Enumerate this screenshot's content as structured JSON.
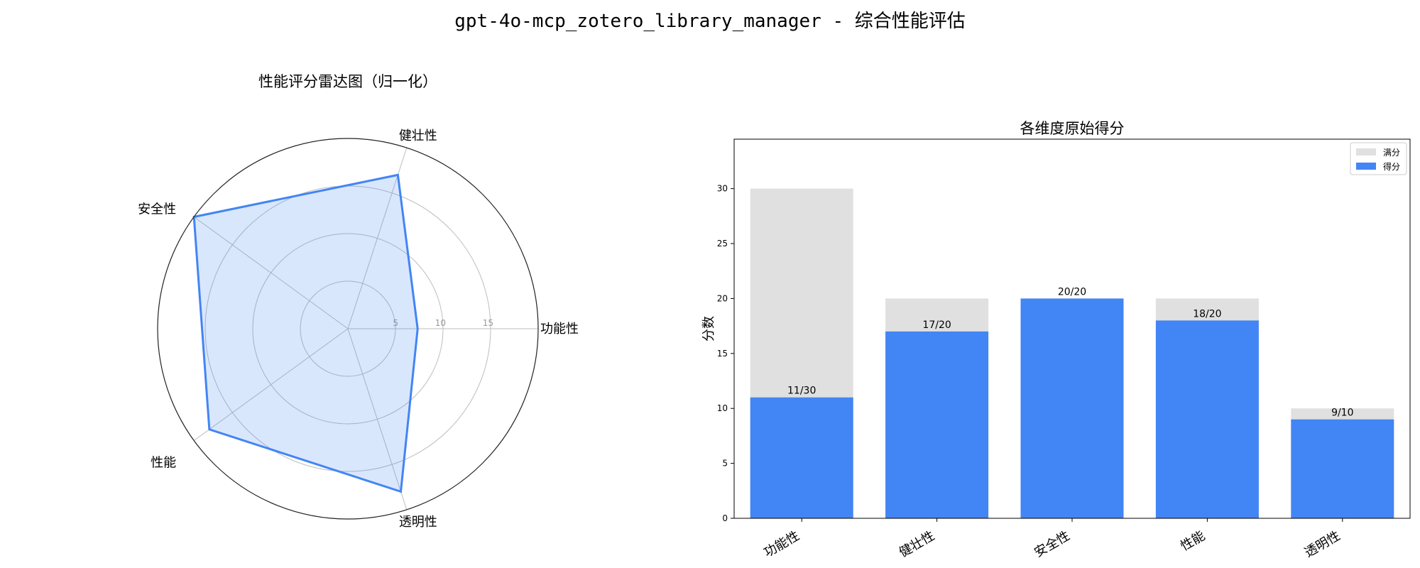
{
  "suptitle": "gpt-4o-mcp_zotero_library_manager - 综合性能评估",
  "chart_data": [
    {
      "type": "radar",
      "title": "性能评分雷达图（归一化）",
      "categories": [
        "功能性",
        "健壮性",
        "安全性",
        "性能",
        "透明性"
      ],
      "values": [
        7.33,
        17,
        20,
        18,
        18
      ],
      "rlim": [
        0,
        20
      ],
      "rticks": [
        5,
        10,
        15,
        20
      ],
      "rtick_labels": [
        "5",
        "10",
        "15",
        ""
      ],
      "color": "#4285f4"
    },
    {
      "type": "bar",
      "title": "各维度原始得分",
      "categories": [
        "功能性",
        "健壮性",
        "安全性",
        "性能",
        "透明性"
      ],
      "ylabel": "分数",
      "ylim": [
        0,
        34.5
      ],
      "yticks": [
        0,
        5,
        10,
        15,
        20,
        25,
        30
      ],
      "series": [
        {
          "name": "满分",
          "values": [
            30,
            20,
            20,
            20,
            10
          ],
          "color": "#e0e0e0"
        },
        {
          "name": "得分",
          "values": [
            11,
            17,
            20,
            18,
            9
          ],
          "color": "#4285f4"
        }
      ],
      "bar_labels": [
        "11/30",
        "17/20",
        "20/20",
        "18/20",
        "9/10"
      ],
      "legend": "top-right"
    }
  ]
}
